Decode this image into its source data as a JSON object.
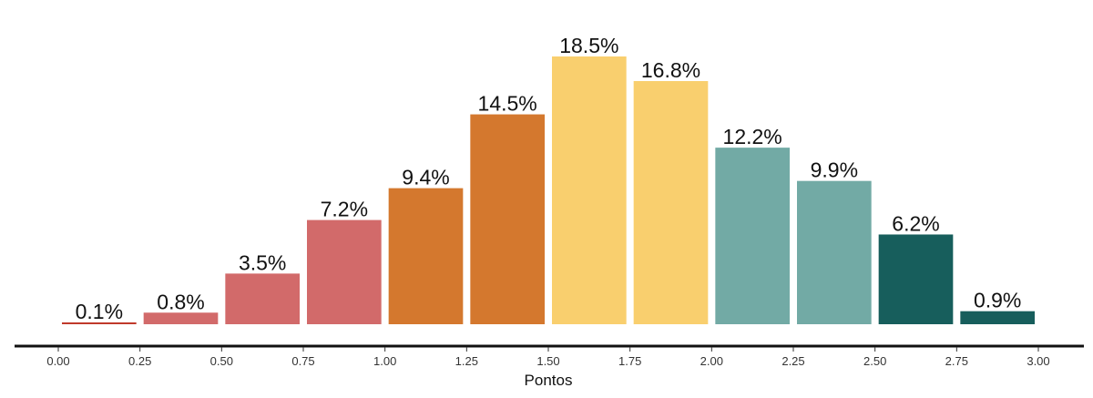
{
  "chart_data": {
    "type": "bar",
    "xlabel": "Pontos",
    "ylabel": "",
    "title": "",
    "grid": false,
    "legend": "none",
    "xlim": [
      0,
      3
    ],
    "ylim": [
      0,
      18.5
    ],
    "x_ticks": [
      "0.00",
      "0.25",
      "0.50",
      "0.75",
      "1.00",
      "1.25",
      "1.50",
      "1.75",
      "2.00",
      "2.25",
      "2.50",
      "2.75",
      "3.00"
    ],
    "bins": [
      {
        "start": 0.0,
        "end": 0.25,
        "value": 0.1,
        "label": "0.1%",
        "color": "#c0392b"
      },
      {
        "start": 0.25,
        "end": 0.5,
        "value": 0.8,
        "label": "0.8%",
        "color": "#d26a6a"
      },
      {
        "start": 0.5,
        "end": 0.75,
        "value": 3.5,
        "label": "3.5%",
        "color": "#d26a6a"
      },
      {
        "start": 0.75,
        "end": 1.0,
        "value": 7.2,
        "label": "7.2%",
        "color": "#d26a6a"
      },
      {
        "start": 1.0,
        "end": 1.25,
        "value": 9.4,
        "label": "9.4%",
        "color": "#d4782e"
      },
      {
        "start": 1.25,
        "end": 1.5,
        "value": 14.5,
        "label": "14.5%",
        "color": "#d4782e"
      },
      {
        "start": 1.5,
        "end": 1.75,
        "value": 18.5,
        "label": "18.5%",
        "color": "#f9cf6e"
      },
      {
        "start": 1.75,
        "end": 2.0,
        "value": 16.8,
        "label": "16.8%",
        "color": "#f9cf6e"
      },
      {
        "start": 2.0,
        "end": 2.25,
        "value": 12.2,
        "label": "12.2%",
        "color": "#72aaa5"
      },
      {
        "start": 2.25,
        "end": 2.5,
        "value": 9.9,
        "label": "9.9%",
        "color": "#72aaa5"
      },
      {
        "start": 2.5,
        "end": 2.75,
        "value": 6.2,
        "label": "6.2%",
        "color": "#175e5c"
      },
      {
        "start": 2.75,
        "end": 3.0,
        "value": 0.9,
        "label": "0.9%",
        "color": "#175e5c"
      }
    ]
  }
}
